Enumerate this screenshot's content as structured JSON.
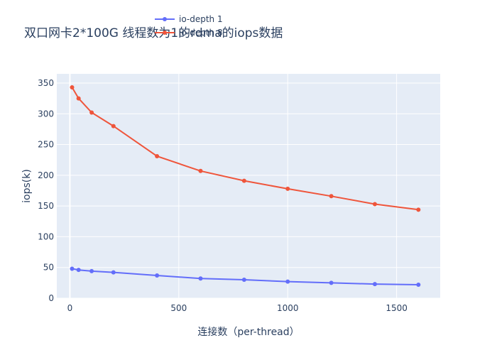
{
  "chart_data": {
    "type": "line",
    "title": "双口网卡2*100G 线程数为1的rdma的iops数据",
    "xlabel": "连接数（per-thread）",
    "ylabel": "iops(k)",
    "xlim": [
      -60,
      1700
    ],
    "ylim": [
      0,
      365
    ],
    "x_ticks": [
      0,
      500,
      1000,
      1500
    ],
    "y_ticks": [
      0,
      50,
      100,
      150,
      200,
      250,
      300,
      350
    ],
    "grid": true,
    "legend_position": "top",
    "series": [
      {
        "name": "io-depth 1",
        "color": "#636efa",
        "x": [
          10,
          40,
          100,
          200,
          400,
          600,
          800,
          1000,
          1200,
          1400,
          1600
        ],
        "y": [
          48,
          46,
          44,
          42,
          37,
          32,
          30,
          27,
          25,
          23,
          22
        ]
      },
      {
        "name": "io-depth 8",
        "color": "#ef553b",
        "x": [
          10,
          40,
          100,
          200,
          400,
          600,
          800,
          1000,
          1200,
          1400,
          1600
        ],
        "y": [
          343,
          325,
          302,
          280,
          231,
          207,
          191,
          178,
          166,
          153,
          144
        ]
      }
    ]
  }
}
